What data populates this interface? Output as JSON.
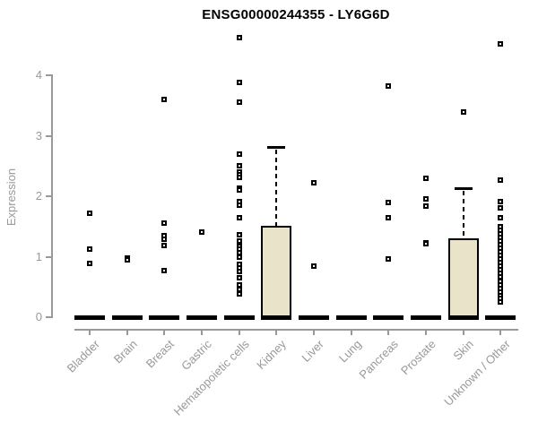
{
  "title": "ENSG00000244355 - LY6G6D",
  "chart_data": {
    "type": "boxplot",
    "title": "ENSG00000244355 - LY6G6D",
    "ylabel": "Expression",
    "xlabel": "",
    "ylim": [
      0,
      4.75
    ],
    "yticks": [
      0,
      1,
      2,
      3,
      4
    ],
    "grid": false,
    "legend": null,
    "colors": {
      "box_fill": "#e9e4c9",
      "box_border": "#000000",
      "axis": "#999999",
      "title": "#000000",
      "outlier": "#000000"
    },
    "categories": [
      "Bladder",
      "Brain",
      "Breast",
      "Gastric",
      "Hematopoietic cells",
      "Kidney",
      "Liver",
      "Lung",
      "Pancreas",
      "Prostate",
      "Skin",
      "Unknown / Other"
    ],
    "boxes": [
      {
        "category": "Bladder",
        "q1": 0,
        "median": 0,
        "q3": 0,
        "whisker_low": 0,
        "whisker_high": 0,
        "outliers": [
          1.72,
          1.13,
          0.89
        ]
      },
      {
        "category": "Brain",
        "q1": 0,
        "median": 0,
        "q3": 0,
        "whisker_low": 0,
        "whisker_high": 0,
        "outliers": [
          0.98,
          0.95
        ]
      },
      {
        "category": "Breast",
        "q1": 0,
        "median": 0,
        "q3": 0,
        "whisker_low": 0,
        "whisker_high": 0,
        "outliers": [
          3.6,
          1.56,
          1.35,
          1.29,
          1.19,
          0.77
        ]
      },
      {
        "category": "Gastric",
        "q1": 0,
        "median": 0,
        "q3": 0,
        "whisker_low": 0,
        "whisker_high": 0,
        "outliers": [
          1.41
        ]
      },
      {
        "category": "Hematopoietic cells",
        "q1": 0,
        "median": 0,
        "q3": 0,
        "whisker_low": 0,
        "whisker_high": 0,
        "outliers": [
          4.62,
          3.88,
          3.56,
          2.7,
          2.5,
          2.4,
          2.36,
          2.31,
          2.13,
          2.11,
          1.91,
          1.85,
          1.64,
          1.36,
          1.26,
          1.17,
          1.13,
          1.07,
          0.99,
          0.87,
          0.81,
          0.76,
          0.65,
          0.53,
          0.46,
          0.39
        ]
      },
      {
        "category": "Kidney",
        "q1": 0,
        "median": 0,
        "q3": 1.5,
        "whisker_low": 0,
        "whisker_high": 2.81,
        "outliers": []
      },
      {
        "category": "Liver",
        "q1": 0,
        "median": 0,
        "q3": 0,
        "whisker_low": 0,
        "whisker_high": 0,
        "outliers": [
          2.22,
          0.84
        ]
      },
      {
        "category": "Lung",
        "q1": 0,
        "median": 0,
        "q3": 0,
        "whisker_low": 0,
        "whisker_high": 0,
        "outliers": []
      },
      {
        "category": "Pancreas",
        "q1": 0,
        "median": 0,
        "q3": 0,
        "whisker_low": 0,
        "whisker_high": 0,
        "outliers": [
          3.82,
          1.9,
          1.64,
          0.96
        ]
      },
      {
        "category": "Prostate",
        "q1": 0,
        "median": 0,
        "q3": 0,
        "whisker_low": 0,
        "whisker_high": 0,
        "outliers": [
          2.3,
          1.96,
          1.84,
          1.23,
          1.21
        ]
      },
      {
        "category": "Skin",
        "q1": 0,
        "median": 0,
        "q3": 1.29,
        "whisker_low": 0,
        "whisker_high": 2.13,
        "outliers": [
          3.39
        ]
      },
      {
        "category": "Unknown / Other",
        "q1": 0,
        "median": 0,
        "q3": 0,
        "whisker_low": 0,
        "whisker_high": 0,
        "outliers": [
          4.52,
          2.27,
          1.91,
          1.81,
          1.64,
          1.5,
          1.44,
          1.38,
          1.32,
          1.26,
          1.2,
          1.14,
          1.08,
          1.02,
          0.96,
          0.9,
          0.84,
          0.78,
          0.72,
          0.66,
          0.6,
          0.54,
          0.48,
          0.42,
          0.36,
          0.31,
          0.25
        ]
      }
    ]
  }
}
